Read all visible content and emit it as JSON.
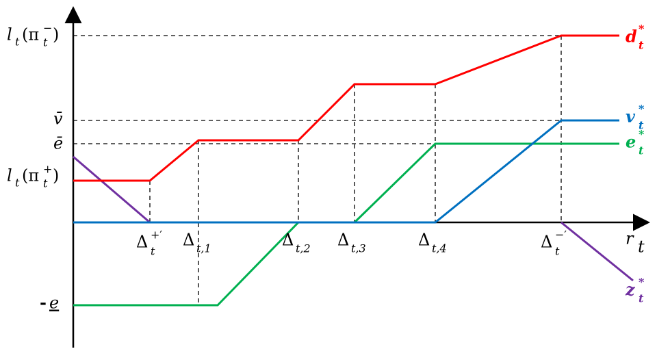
{
  "left_labels": [
    [
      "l",
      "t",
      "(π",
      "t",
      "−",
      ")"
    ],
    [
      "v̄"
    ],
    [
      "ē"
    ],
    [
      "l",
      "t",
      "(π",
      "t",
      "+",
      ")"
    ],
    [
      "-",
      "e"
    ]
  ],
  "bottom_labels": [
    [
      "Δ",
      "t",
      "+′"
    ],
    [
      "Δ",
      "t,1"
    ],
    [
      "Δ",
      "t,2"
    ],
    [
      "Δ",
      "t,3"
    ],
    [
      "Δ",
      "t,4"
    ],
    [
      "Δ",
      "t",
      "−′"
    ]
  ],
  "axis_label": [
    "r",
    "t"
  ],
  "curve_labels": [
    [
      "d",
      "t",
      "*"
    ],
    [
      "v",
      "t",
      "*"
    ],
    [
      "e",
      "t",
      "*"
    ],
    [
      "z",
      "t",
      "*"
    ]
  ]
}
